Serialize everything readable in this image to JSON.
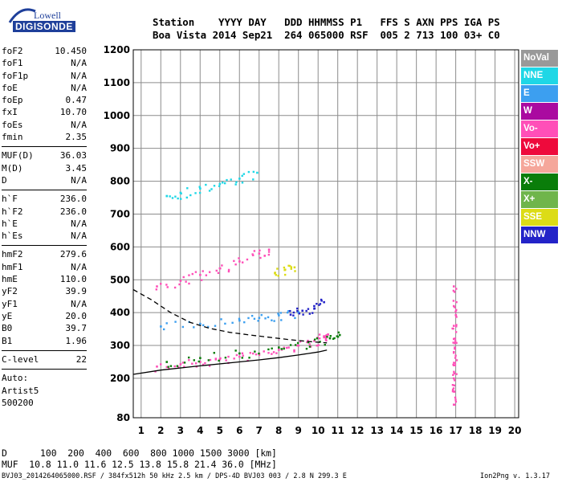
{
  "logo": {
    "line1": "Lowell",
    "line2": "DIGISONDE"
  },
  "header": {
    "line1": "Station    YYYY DAY   DDD HHMMSS P1   FFS S AXN PPS IGA PS",
    "line2": "Boa Vista 2014 Sep21  264 065000 RSF  005 2 713 100 03+ C0"
  },
  "params": [
    [
      {
        "label": "foF2",
        "value": "10.450"
      },
      {
        "label": "foF1",
        "value": "N/A"
      },
      {
        "label": "foF1p",
        "value": "N/A"
      },
      {
        "label": "foE",
        "value": "N/A"
      },
      {
        "label": "foEp",
        "value": "0.47"
      },
      {
        "label": "fxI",
        "value": "10.70"
      },
      {
        "label": "foEs",
        "value": "N/A"
      },
      {
        "label": "fmin",
        "value": "2.35"
      }
    ],
    [
      {
        "label": "MUF(D)",
        "value": "36.03"
      },
      {
        "label": "M(D)",
        "value": "3.45"
      },
      {
        "label": "D",
        "value": "N/A"
      }
    ],
    [
      {
        "label": "h`F",
        "value": "236.0"
      },
      {
        "label": "h`F2",
        "value": "236.0"
      },
      {
        "label": "h`E",
        "value": "N/A"
      },
      {
        "label": "h`Es",
        "value": "N/A"
      }
    ],
    [
      {
        "label": "hmF2",
        "value": "279.6"
      },
      {
        "label": "hmF1",
        "value": "N/A"
      },
      {
        "label": "hmE",
        "value": "110.0"
      },
      {
        "label": "yF2",
        "value": "39.9"
      },
      {
        "label": "yF1",
        "value": "N/A"
      },
      {
        "label": "yE",
        "value": "20.0"
      },
      {
        "label": "B0",
        "value": "39.7"
      },
      {
        "label": "B1",
        "value": "1.96"
      }
    ],
    [
      {
        "label": "C-level",
        "value": "22"
      }
    ]
  ],
  "auto": {
    "line1": "Auto:",
    "line2": "Artist5",
    "line3": "500200"
  },
  "legend": [
    {
      "label": "NoVal",
      "color": "#999999"
    },
    {
      "label": "NNE",
      "color": "#1fd7e6"
    },
    {
      "label": "E",
      "color": "#3c9ff0"
    },
    {
      "label": "W",
      "color": "#aa0aa0"
    },
    {
      "label": "Vo-",
      "color": "#ff4fb8"
    },
    {
      "label": "Vo+",
      "color": "#ee0a3c"
    },
    {
      "label": "SSW",
      "color": "#f5a79b"
    },
    {
      "label": "X-",
      "color": "#0a7d0a"
    },
    {
      "label": "X+",
      "color": "#6fb54b"
    },
    {
      "label": "SSE",
      "color": "#dcdc16"
    },
    {
      "label": "NNW",
      "color": "#2323c8"
    }
  ],
  "footer": {
    "d_line": "D      100  200  400  600  800 1000 1500 3000 [km]",
    "muf_line": "MUF  10.8 11.0 11.6 12.5 13.8 15.8 21.4 36.0 [MHz]",
    "file_line": "BVJ03_2014264065000.RSF / 384fx512h 50 kHz 2.5 km / DPS-4D BVJ03 003 / 2.8 N 299.3 E",
    "version": "Ion2Png v. 1.3.17"
  },
  "chart_data": {
    "type": "scatter",
    "xlabel": "",
    "ylabel": "",
    "xlim": [
      0.6,
      20.2
    ],
    "ylim": [
      80,
      1200
    ],
    "x_ticks": [
      1,
      2,
      3,
      4,
      5,
      6,
      7,
      8,
      9,
      10,
      11,
      12,
      13,
      14,
      15,
      16,
      17,
      18,
      19,
      20
    ],
    "y_ticks": [
      80,
      200,
      300,
      400,
      500,
      600,
      700,
      800,
      900,
      1000,
      1100,
      1200
    ],
    "grid": true,
    "traces": [
      {
        "name": "o-trace F2",
        "color": "#ff4fb8",
        "points": [
          [
            1.8,
            236
          ],
          [
            3,
            243
          ],
          [
            4,
            250
          ],
          [
            5,
            258
          ],
          [
            6,
            266
          ],
          [
            7,
            275
          ],
          [
            8,
            287
          ],
          [
            9,
            300
          ],
          [
            9.8,
            314
          ],
          [
            10.3,
            325
          ],
          [
            10.5,
            334
          ]
        ]
      },
      {
        "name": "x-trace F2",
        "color": "#0a7d0a",
        "points": [
          [
            2.3,
            250
          ],
          [
            4,
            262
          ],
          [
            6,
            276
          ],
          [
            8,
            294
          ],
          [
            9.5,
            310
          ],
          [
            10.6,
            322
          ],
          [
            11.1,
            332
          ]
        ]
      },
      {
        "name": "2nd hop",
        "color": "#ff4fb8",
        "points": [
          [
            1.8,
            480
          ],
          [
            3,
            497
          ],
          [
            4,
            515
          ],
          [
            5,
            535
          ],
          [
            6,
            556
          ],
          [
            7,
            580
          ],
          [
            7.5,
            592
          ]
        ]
      },
      {
        "name": "3rd hop",
        "color": "#1fd7e6",
        "points": [
          [
            2.3,
            755
          ],
          [
            3,
            765
          ],
          [
            4,
            778
          ],
          [
            5,
            792
          ],
          [
            6,
            808
          ],
          [
            6.9,
            826
          ]
        ]
      },
      {
        "name": "E-direction",
        "color": "#3c9ff0",
        "points": [
          [
            2,
            358
          ],
          [
            4,
            366
          ],
          [
            6,
            376
          ],
          [
            7,
            384
          ],
          [
            8,
            392
          ],
          [
            9,
            400
          ]
        ]
      },
      {
        "name": "NNW",
        "color": "#2323c8",
        "points": [
          [
            8.6,
            394
          ],
          [
            9.2,
            406
          ],
          [
            9.8,
            420
          ],
          [
            10.3,
            432
          ]
        ]
      },
      {
        "name": "SSE",
        "color": "#dcdc16",
        "points": [
          [
            7.8,
            520
          ],
          [
            8.3,
            530
          ],
          [
            8.8,
            538
          ]
        ]
      },
      {
        "name": "spread F",
        "color": "#ff4fb8",
        "points": [
          [
            16.9,
            480
          ],
          [
            16.9,
            420
          ],
          [
            16.9,
            360
          ],
          [
            16.9,
            320
          ],
          [
            16.9,
            280
          ],
          [
            16.9,
            240
          ],
          [
            16.9,
            200
          ],
          [
            16.9,
            160
          ],
          [
            16.9,
            120
          ]
        ]
      }
    ],
    "profile_curve": {
      "color": "#000000",
      "points": [
        [
          0.6,
          212
        ],
        [
          2,
          225
        ],
        [
          4,
          238
        ],
        [
          6,
          250
        ],
        [
          7,
          256
        ],
        [
          8,
          263
        ],
        [
          9,
          271
        ],
        [
          10,
          280
        ],
        [
          10.45,
          286
        ]
      ]
    },
    "model_curve": {
      "color": "#000000",
      "dashed": true,
      "points": [
        [
          0.6,
          470
        ],
        [
          1.5,
          440
        ],
        [
          2.5,
          400
        ],
        [
          3.5,
          370
        ],
        [
          4.5,
          352
        ],
        [
          5.5,
          340
        ],
        [
          6.5,
          332
        ],
        [
          7.5,
          325
        ],
        [
          8.5,
          318
        ],
        [
          9.5,
          312
        ],
        [
          10.45,
          308
        ]
      ]
    }
  }
}
